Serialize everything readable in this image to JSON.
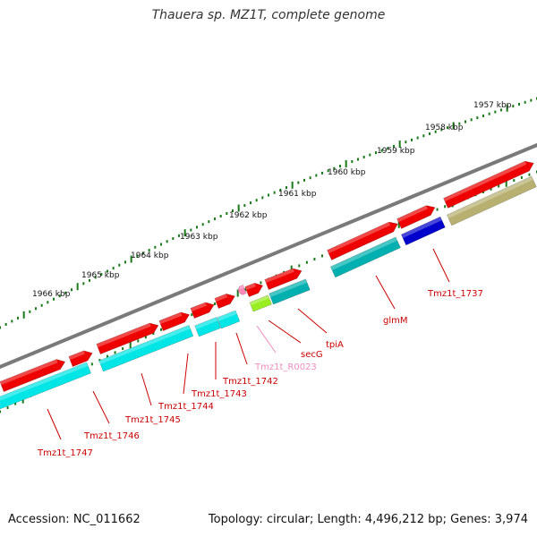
{
  "title": "Thauera sp. MZ1T, complete genome",
  "accession": "Accession: NC_011662",
  "topology": "Topology: circular; Length: 4,496,212 bp; Genes: 3,974",
  "ruler": {
    "labels": [
      "1957 kbp",
      "1958 kbp",
      "1959 kbp",
      "1960 kbp",
      "1961 kbp",
      "1962 kbp",
      "1963 kbp",
      "1964 kbp",
      "1965 kbp",
      "1966 kbp"
    ]
  },
  "gene_labels": [
    {
      "name": "Tmz1t_1737",
      "color": "#cc0000"
    },
    {
      "name": "glmM",
      "color": "#cc0000"
    },
    {
      "name": "tpiA",
      "color": "#cc0000"
    },
    {
      "name": "secG",
      "color": "#cc0000"
    },
    {
      "name": "Tmz1t_R0023",
      "color": "#f08cc0"
    },
    {
      "name": "Tmz1t_1742",
      "color": "#cc0000"
    },
    {
      "name": "Tmz1t_1743",
      "color": "#cc0000"
    },
    {
      "name": "Tmz1t_1744",
      "color": "#cc0000"
    },
    {
      "name": "Tmz1t_1745",
      "color": "#cc0000"
    },
    {
      "name": "Tmz1t_1746",
      "color": "#cc0000"
    },
    {
      "name": "Tmz1t_1747",
      "color": "#cc0000"
    }
  ],
  "colors": {
    "red_gene": "#ee0000",
    "cyan_gene": "#00e5e5",
    "teal_gene": "#00b0b0",
    "blue_gene": "#0000cc",
    "olive_gene": "#b8b070",
    "green_gene": "#99ee22",
    "pink_gene": "#ff88bb",
    "backbone": "#7a7a7a",
    "ruler": "#1a7a1a"
  }
}
